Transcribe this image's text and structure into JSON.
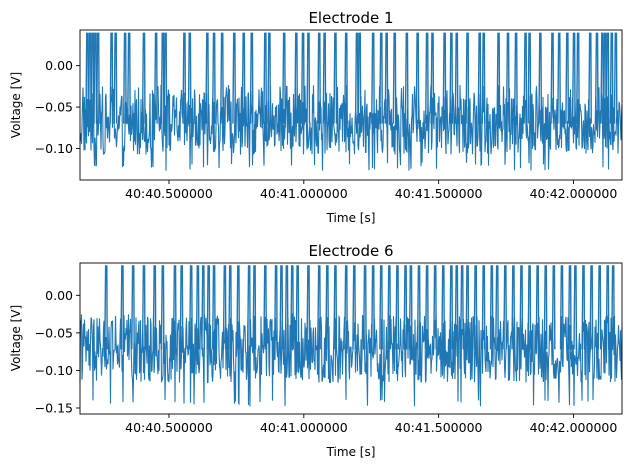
{
  "chart_data": [
    {
      "type": "line",
      "title": "Electrode 1",
      "xlabel": "Time [s]",
      "ylabel": "Voltage [V]",
      "xlim": [
        0.17,
        2.18
      ],
      "ylim": [
        -0.138,
        0.043
      ],
      "x_ticks": [
        0.5,
        1.0,
        1.5,
        2.0
      ],
      "x_tick_labels": [
        "40:40.500000",
        "40:41.000000",
        "40:41.500000",
        "40:42.000000"
      ],
      "y_ticks": [
        0.0,
        -0.05,
        -0.1
      ],
      "y_tick_labels": [
        "0.00",
        "−0.05",
        "−0.10"
      ],
      "color": "#1f77b4",
      "series": [
        {
          "x_start": 0.17,
          "x_end": 2.18,
          "baseline": -0.07,
          "noise_band": [
            -0.127,
            -0.023
          ],
          "spike_peak": 0.039,
          "spike_times": [
            0.195,
            0.205,
            0.215,
            0.225,
            0.235,
            0.285,
            0.3,
            0.335,
            0.35,
            0.405,
            0.45,
            0.475,
            0.485,
            0.555,
            0.575,
            0.64,
            0.665,
            0.695,
            0.74,
            0.775,
            0.805,
            0.855,
            0.87,
            0.925,
            0.97,
            0.995,
            1.015,
            1.055,
            1.075,
            1.115,
            1.155,
            1.195,
            1.205,
            1.255,
            1.285,
            1.305,
            1.335,
            1.38,
            1.42,
            1.455,
            1.475,
            1.52,
            1.545,
            1.565,
            1.605,
            1.65,
            1.665,
            1.72,
            1.755,
            1.785,
            1.82,
            1.835,
            1.875,
            1.92,
            1.945,
            1.975,
            2.0,
            2.015,
            2.06,
            2.085,
            2.105,
            2.115,
            2.125,
            2.14,
            2.155
          ]
        }
      ]
    },
    {
      "type": "line",
      "title": "Electrode 6",
      "xlabel": "Time [s]",
      "ylabel": "Voltage [V]",
      "xlim": [
        0.17,
        2.18
      ],
      "ylim": [
        -0.158,
        0.043
      ],
      "x_ticks": [
        0.5,
        1.0,
        1.5,
        2.0
      ],
      "x_tick_labels": [
        "40:40.500000",
        "40:41.000000",
        "40:41.500000",
        "40:42.000000"
      ],
      "y_ticks": [
        0.0,
        -0.05,
        -0.1,
        -0.15
      ],
      "y_tick_labels": [
        "0.00",
        "−0.05",
        "−0.10",
        "−0.15"
      ],
      "color": "#1f77b4",
      "series": [
        {
          "x_start": 0.17,
          "x_end": 2.18,
          "baseline": -0.072,
          "noise_band": [
            -0.148,
            -0.025
          ],
          "spike_peak": 0.039,
          "spike_times": [
            0.265,
            0.325,
            0.365,
            0.405,
            0.445,
            0.475,
            0.52,
            0.545,
            0.58,
            0.605,
            0.625,
            0.645,
            0.665,
            0.705,
            0.725,
            0.755,
            0.795,
            0.815,
            0.855,
            0.895,
            0.915,
            0.935,
            0.955,
            0.975,
            1.015,
            1.055,
            1.085,
            1.115,
            1.155,
            1.185,
            1.225,
            1.255,
            1.285,
            1.315,
            1.345,
            1.375,
            1.395,
            1.425,
            1.455,
            1.485,
            1.515,
            1.545,
            1.565,
            1.585,
            1.605,
            1.635,
            1.665,
            1.695,
            1.715,
            1.745,
            1.775,
            1.805,
            1.835,
            1.865,
            1.895,
            1.925,
            1.955,
            1.985,
            2.005,
            2.035,
            2.065,
            2.095,
            2.125,
            2.145
          ]
        }
      ]
    }
  ]
}
